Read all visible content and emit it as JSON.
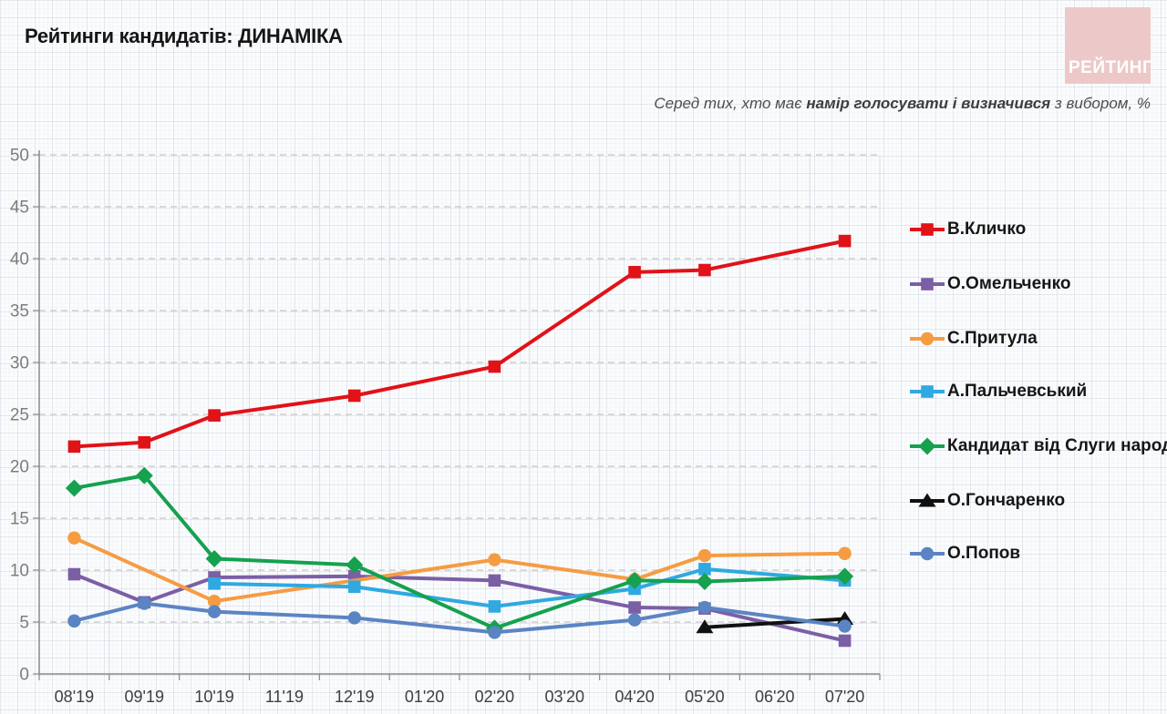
{
  "header": {
    "title": "Рейтинги кандидатів: ДИНАМІКА",
    "logo_text": "РЕЙТИНГ",
    "logo_bg": "#ecc9c8"
  },
  "subtitle": {
    "prefix": "Серед тих, хто має ",
    "bold": "намір голосувати і визначився",
    "suffix": " з вибором, %"
  },
  "chart_data": {
    "type": "line",
    "title": "Рейтинги кандидатів: ДИНАМІКА",
    "subtitle": "Серед тих, хто має намір голосувати і визначився з вибором, %",
    "categories": [
      "08'19",
      "09'19",
      "10'19",
      "11'19",
      "12'19",
      "01'20",
      "02'20",
      "03'20",
      "04'20",
      "05'20",
      "06'20",
      "07'20"
    ],
    "ylim": [
      0,
      50
    ],
    "ytick_step": 5,
    "grid": {
      "horizontal": "dashed",
      "vertical": "light-solid"
    },
    "legend_position": "right",
    "axis_color": "#898989",
    "hgrid_color": "#c6c6c6",
    "vgrid_color": "#dadee5",
    "series": [
      {
        "name": "В.Кличко",
        "color": "#e11218",
        "marker": "square",
        "values": [
          21.9,
          22.3,
          24.9,
          null,
          26.8,
          null,
          29.6,
          null,
          38.7,
          38.9,
          null,
          41.7
        ]
      },
      {
        "name": "О.Омельченко",
        "color": "#7b5fa5",
        "marker": "square",
        "values": [
          9.6,
          6.9,
          9.3,
          null,
          9.4,
          null,
          9.0,
          null,
          6.4,
          6.3,
          null,
          3.2
        ]
      },
      {
        "name": "С.Притула",
        "color": "#f59c42",
        "marker": "circle",
        "values": [
          13.1,
          null,
          7.0,
          null,
          null,
          null,
          11.0,
          null,
          9.1,
          11.4,
          null,
          11.6
        ]
      },
      {
        "name": "А.Пальчевський",
        "color": "#2fa9e0",
        "marker": "square",
        "values": [
          null,
          null,
          8.7,
          null,
          8.4,
          null,
          6.5,
          null,
          8.2,
          10.1,
          null,
          9.0
        ]
      },
      {
        "name": "Кандидат від Слуги народу",
        "color": "#15a14e",
        "marker": "diamond",
        "values": [
          17.9,
          19.1,
          11.1,
          null,
          10.5,
          null,
          4.4,
          null,
          9.0,
          8.9,
          null,
          9.4
        ]
      },
      {
        "name": "О.Гончаренко",
        "color": "#111111",
        "marker": "triangle",
        "values": [
          null,
          null,
          null,
          null,
          null,
          null,
          null,
          null,
          null,
          4.5,
          null,
          5.3
        ]
      },
      {
        "name": "О.Попов",
        "color": "#5b84c3",
        "marker": "circle",
        "values": [
          5.1,
          6.8,
          6.0,
          null,
          5.4,
          null,
          4.0,
          null,
          5.2,
          6.4,
          null,
          4.6
        ]
      }
    ]
  },
  "legend_row_centers": [
    252,
    312,
    372,
    430,
    490,
    550,
    608
  ]
}
